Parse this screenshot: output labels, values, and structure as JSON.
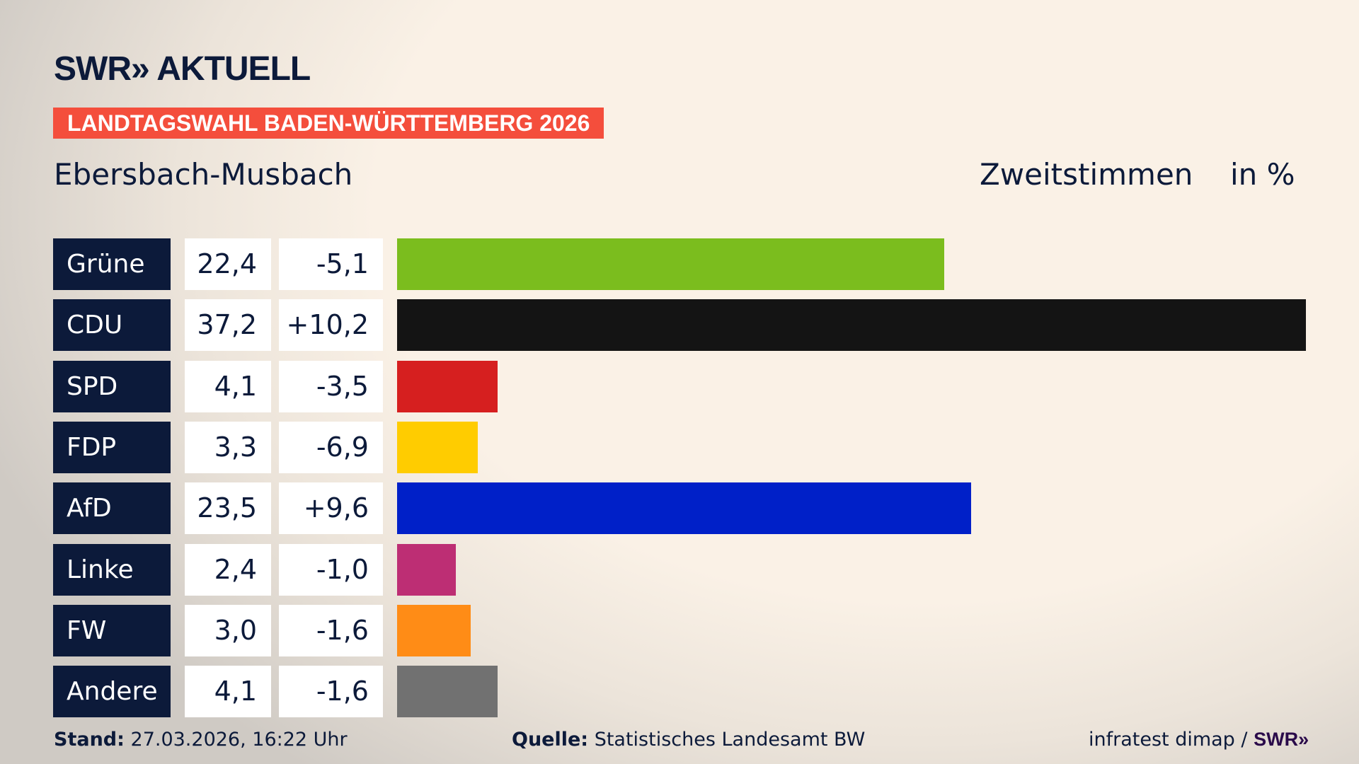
{
  "header": {
    "logo": "SWR» AKTUELL",
    "banner": "LANDTAGSWAHL BADEN-WÜRTTEMBERG 2026",
    "region": "Ebersbach-Musbach",
    "vote_type": "Zweitstimmen",
    "unit": "in %"
  },
  "chart_data": {
    "type": "bar",
    "orientation": "horizontal",
    "xlim": [
      0,
      37.2
    ],
    "categories": [
      "Grüne",
      "CDU",
      "SPD",
      "FDP",
      "AfD",
      "Linke",
      "FW",
      "Andere"
    ],
    "values": [
      22.4,
      37.2,
      4.1,
      3.3,
      23.5,
      2.4,
      3.0,
      4.1
    ],
    "value_labels": [
      "22,4",
      "37,2",
      "4,1",
      "3,3",
      "23,5",
      "2,4",
      "3,0",
      "4,1"
    ],
    "diff_labels": [
      "-5,1",
      "+10,2",
      "-3,5",
      "-6,9",
      "+9,6",
      "-1,0",
      "-1,6",
      "-1,6"
    ],
    "colors": [
      "#7bbd1e",
      "#141414",
      "#d61f1f",
      "#ffcc00",
      "#0020c8",
      "#bd2e74",
      "#ff8c16",
      "#717171"
    ]
  },
  "footer": {
    "stand_label": "Stand:",
    "stand": "27.03.2026, 16:22 Uhr",
    "source_label": "Quelle:",
    "source": "Statistisches Landesamt BW",
    "credit": "infratest dimap / ",
    "credit_logo": "SWR»"
  }
}
